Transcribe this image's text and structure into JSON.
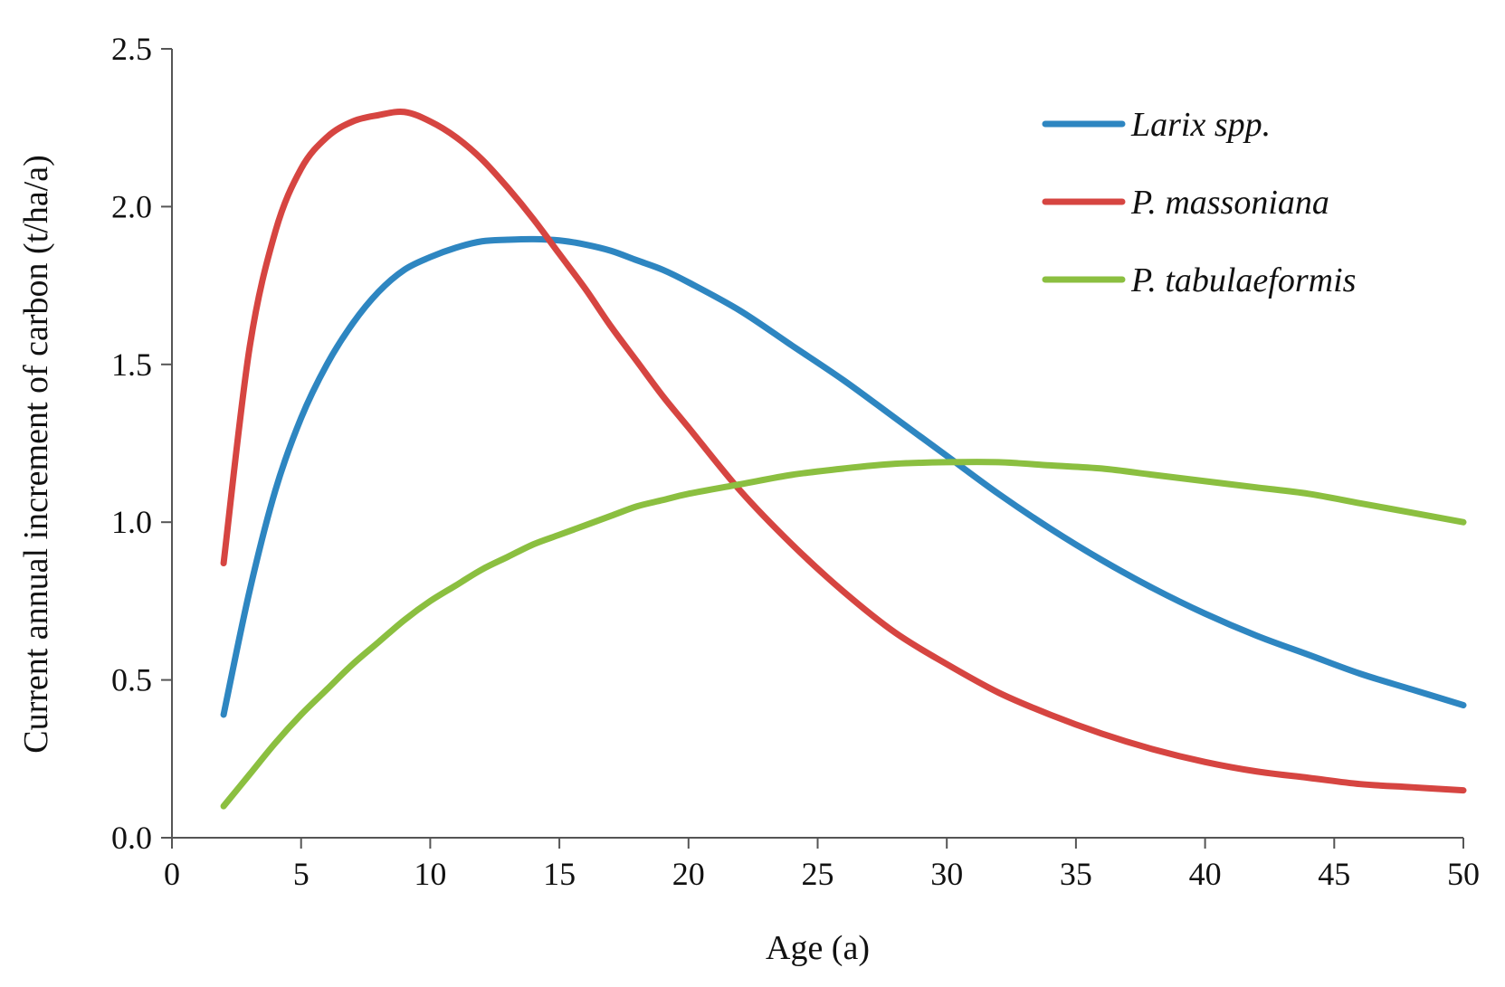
{
  "chart_data": {
    "type": "line",
    "title": "",
    "xlabel": "Age (a)",
    "ylabel": "Current annual increment of carbon (t/ha/a)",
    "xlim": [
      0,
      50
    ],
    "ylim": [
      0,
      2.5
    ],
    "xticks": [
      0,
      5,
      10,
      15,
      20,
      25,
      30,
      35,
      40,
      45,
      50
    ],
    "yticks": [
      "0.0",
      "0.5",
      "1.0",
      "1.5",
      "2.0",
      "2.5"
    ],
    "grid": false,
    "legend_position": "top-right",
    "x": [
      2,
      3,
      4,
      5,
      6,
      7,
      8,
      9,
      10,
      11,
      12,
      13,
      14,
      15,
      16,
      17,
      18,
      19,
      20,
      22,
      24,
      26,
      28,
      30,
      32,
      34,
      36,
      38,
      40,
      42,
      44,
      46,
      48,
      50
    ],
    "series": [
      {
        "name": "Larix spp.",
        "color": "#2E86C1",
        "values": [
          0.39,
          0.78,
          1.1,
          1.33,
          1.5,
          1.63,
          1.73,
          1.8,
          1.84,
          1.87,
          1.89,
          1.895,
          1.897,
          1.893,
          1.88,
          1.86,
          1.83,
          1.8,
          1.76,
          1.67,
          1.56,
          1.45,
          1.33,
          1.21,
          1.09,
          0.98,
          0.88,
          0.79,
          0.71,
          0.64,
          0.58,
          0.52,
          0.47,
          0.42
        ]
      },
      {
        "name": "P. massoniana",
        "color": "#D64541",
        "values": [
          0.87,
          1.55,
          1.92,
          2.12,
          2.22,
          2.27,
          2.29,
          2.3,
          2.27,
          2.22,
          2.15,
          2.06,
          1.96,
          1.85,
          1.74,
          1.62,
          1.51,
          1.4,
          1.3,
          1.1,
          0.93,
          0.78,
          0.65,
          0.55,
          0.46,
          0.39,
          0.33,
          0.28,
          0.24,
          0.21,
          0.19,
          0.17,
          0.16,
          0.15
        ]
      },
      {
        "name": "P. tabulaeformis",
        "color": "#8BBF40",
        "values": [
          0.1,
          0.2,
          0.3,
          0.39,
          0.47,
          0.55,
          0.62,
          0.69,
          0.75,
          0.8,
          0.85,
          0.89,
          0.93,
          0.96,
          0.99,
          1.02,
          1.05,
          1.07,
          1.09,
          1.12,
          1.15,
          1.17,
          1.185,
          1.19,
          1.19,
          1.18,
          1.17,
          1.15,
          1.13,
          1.11,
          1.09,
          1.06,
          1.03,
          1.0
        ]
      }
    ]
  }
}
